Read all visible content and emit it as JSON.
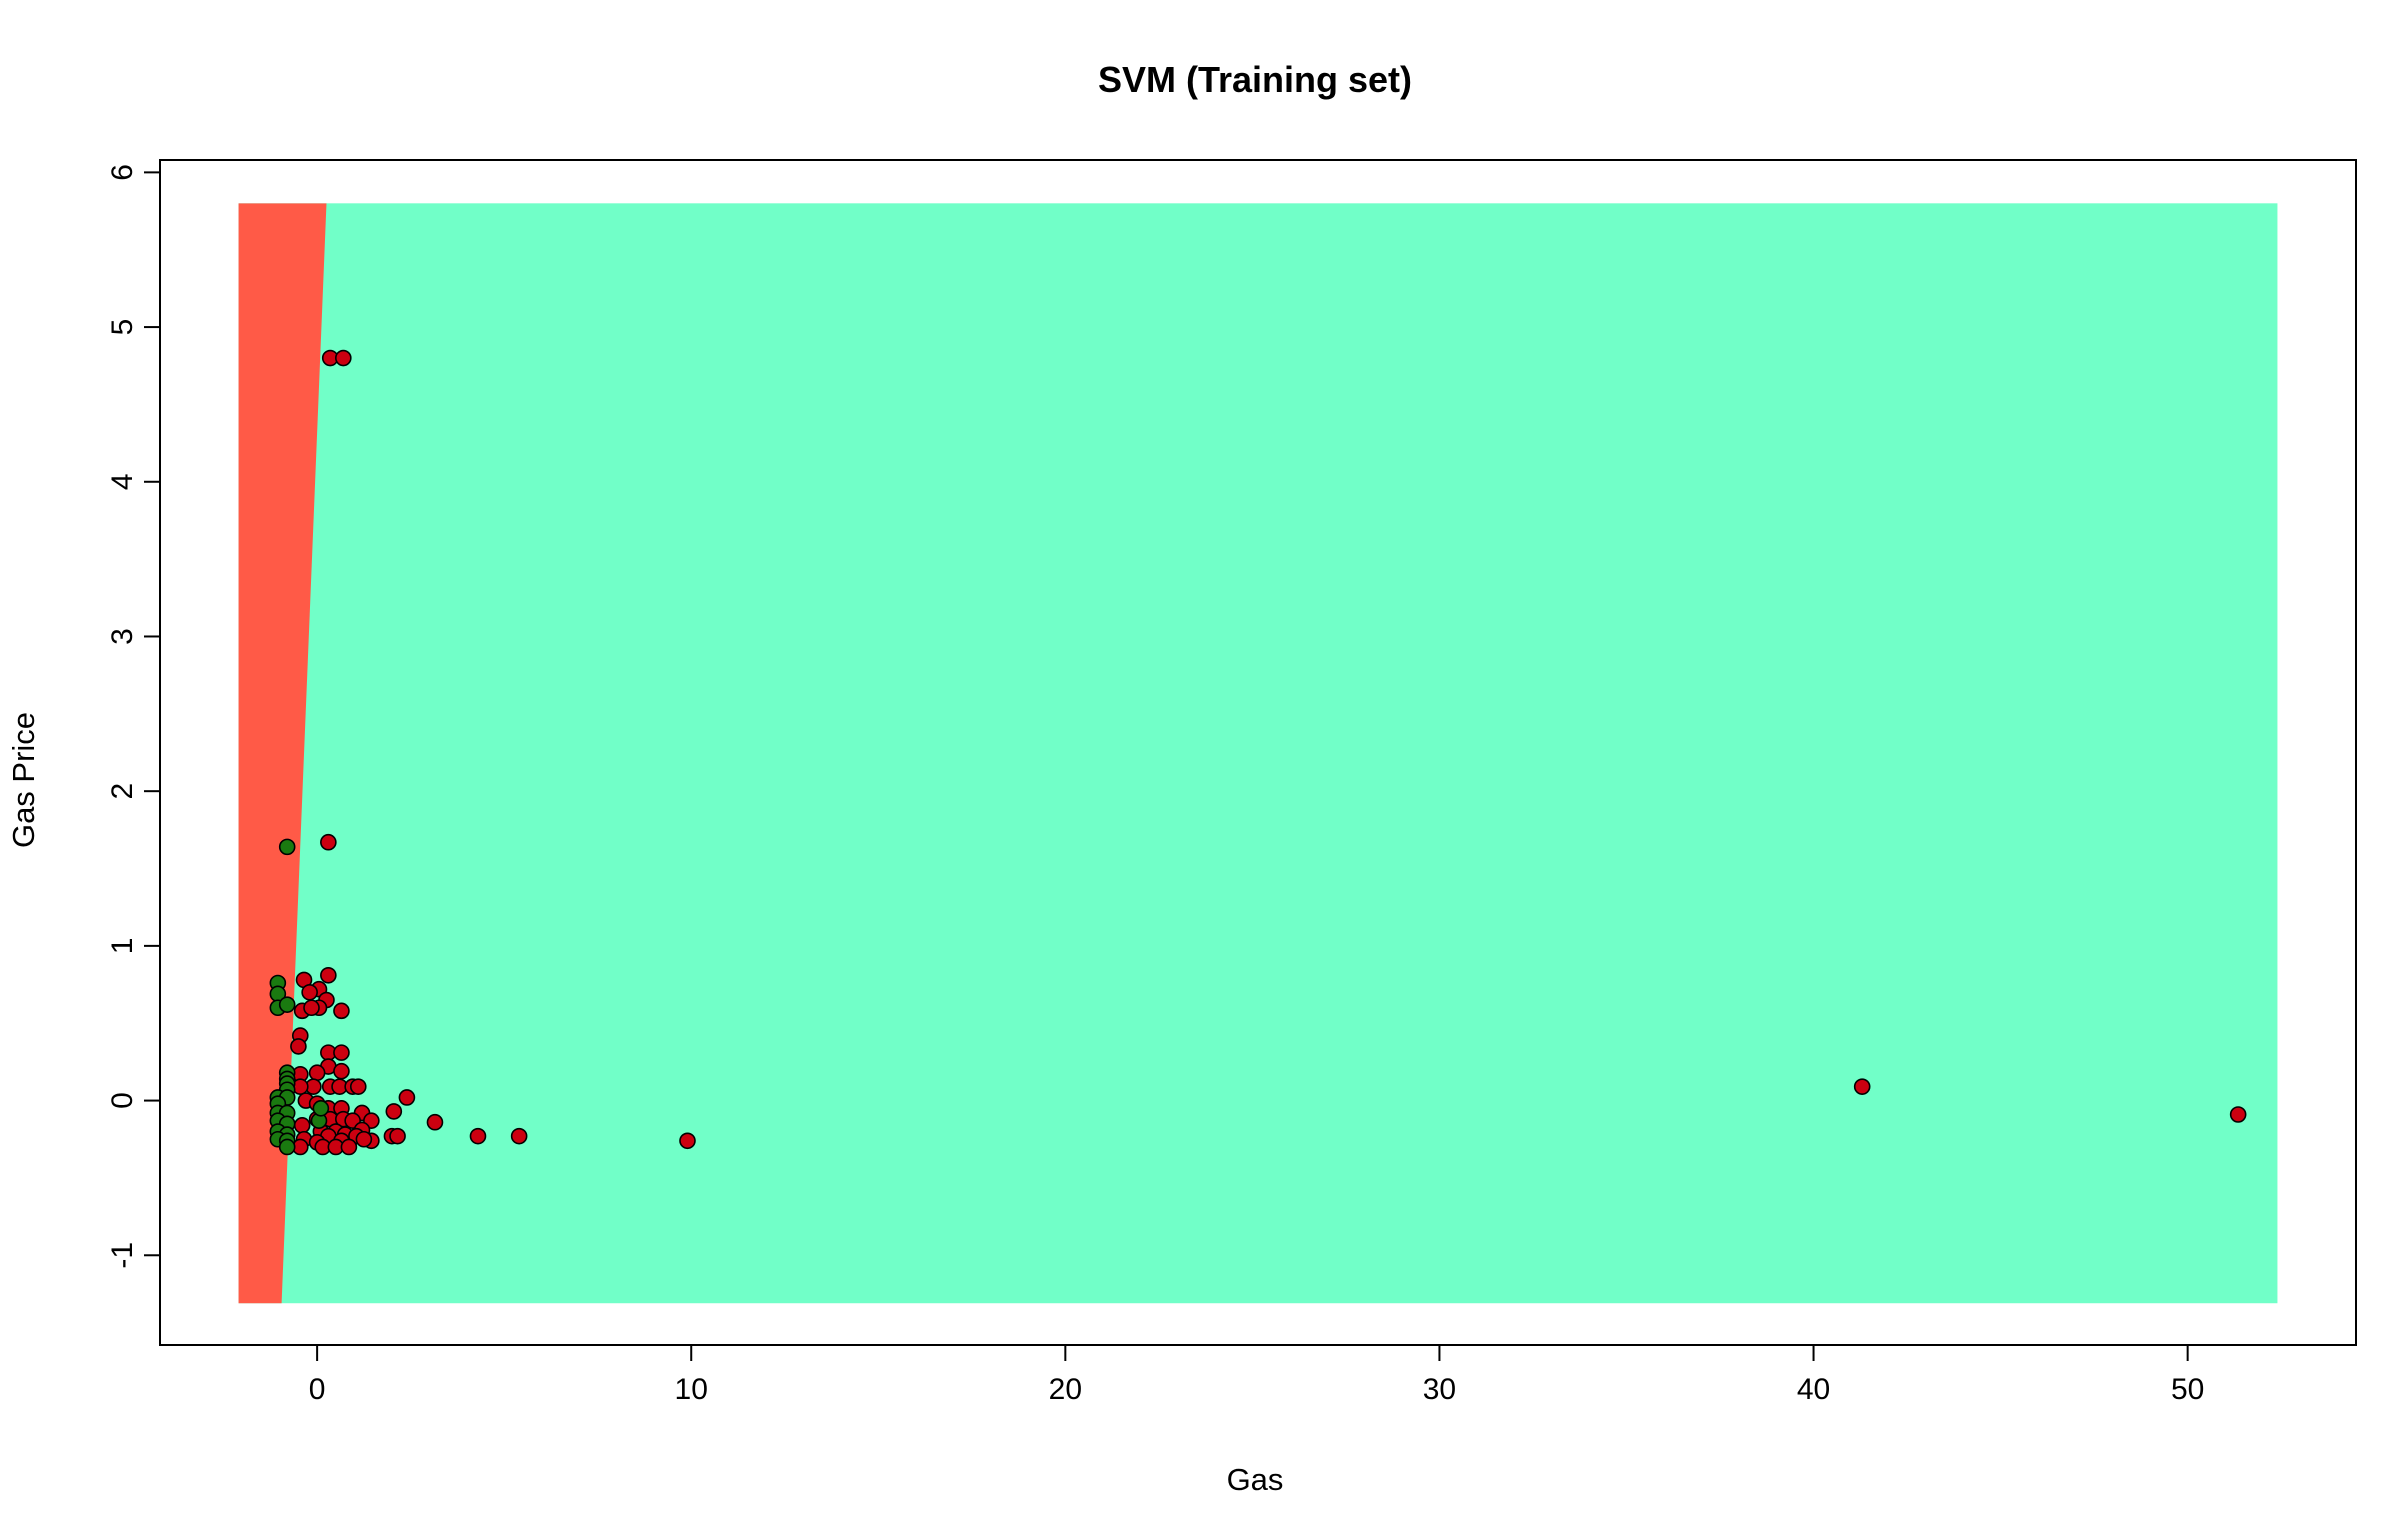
{
  "chart_data": {
    "type": "scatter",
    "title": "SVM (Training set)",
    "xlabel": "Gas",
    "ylabel": "Gas Price",
    "xlim": [
      -4.2,
      54.5
    ],
    "ylim": [
      -1.58,
      6.08
    ],
    "x_ticks": [
      0,
      10,
      20,
      30,
      40,
      50
    ],
    "y_ticks": [
      -1,
      0,
      1,
      2,
      3,
      4,
      5,
      6
    ],
    "grid": false,
    "legend": "none",
    "decision_region": {
      "x_range": [
        -2.1,
        52.4
      ],
      "y_range": [
        -1.31,
        5.8
      ],
      "boundary": [
        [
          -0.95,
          -1.31
        ],
        [
          0.25,
          5.8
        ]
      ],
      "left_class_color": "#FF5A47",
      "right_class_color": "#71FFC8"
    },
    "series": [
      {
        "color": "#CC0010",
        "points": [
          [
            0.35,
            4.8
          ],
          [
            0.7,
            4.8
          ],
          [
            0.3,
            1.67
          ],
          [
            0.3,
            0.81
          ],
          [
            -0.35,
            0.78
          ],
          [
            0.05,
            0.72
          ],
          [
            -0.2,
            0.7
          ],
          [
            0.25,
            0.65
          ],
          [
            -0.4,
            0.58
          ],
          [
            0.05,
            0.6
          ],
          [
            0.65,
            0.58
          ],
          [
            -0.15,
            0.6
          ],
          [
            -0.45,
            0.42
          ],
          [
            -0.5,
            0.35
          ],
          [
            0.3,
            0.31
          ],
          [
            0.65,
            0.31
          ],
          [
            0.3,
            0.22
          ],
          [
            0.65,
            0.19
          ],
          [
            -0.45,
            0.17
          ],
          [
            0.0,
            0.18
          ],
          [
            0.35,
            0.09
          ],
          [
            0.6,
            0.09
          ],
          [
            0.95,
            0.09
          ],
          [
            1.1,
            0.09
          ],
          [
            -0.1,
            0.09
          ],
          [
            -0.45,
            0.09
          ],
          [
            2.4,
            0.02
          ],
          [
            -0.3,
            0.0
          ],
          [
            0.0,
            -0.02
          ],
          [
            0.3,
            -0.05
          ],
          [
            0.65,
            -0.05
          ],
          [
            1.2,
            -0.08
          ],
          [
            2.05,
            -0.07
          ],
          [
            0.0,
            -0.12
          ],
          [
            0.35,
            -0.12
          ],
          [
            0.7,
            -0.12
          ],
          [
            0.95,
            -0.13
          ],
          [
            1.45,
            -0.13
          ],
          [
            3.15,
            -0.14
          ],
          [
            -0.4,
            -0.16
          ],
          [
            0.1,
            -0.2
          ],
          [
            0.5,
            -0.2
          ],
          [
            1.2,
            -0.19
          ],
          [
            0.3,
            -0.23
          ],
          [
            0.75,
            -0.22
          ],
          [
            1.05,
            -0.23
          ],
          [
            2.0,
            -0.23
          ],
          [
            2.15,
            -0.23
          ],
          [
            4.3,
            -0.23
          ],
          [
            5.4,
            -0.23
          ],
          [
            -0.35,
            -0.25
          ],
          [
            0.0,
            -0.27
          ],
          [
            0.65,
            -0.26
          ],
          [
            1.45,
            -0.26
          ],
          [
            1.25,
            -0.25
          ],
          [
            0.15,
            -0.3
          ],
          [
            0.5,
            -0.3
          ],
          [
            0.85,
            -0.3
          ],
          [
            -0.45,
            -0.3
          ],
          [
            9.9,
            -0.26
          ],
          [
            41.3,
            0.09
          ],
          [
            51.35,
            -0.09
          ]
        ]
      },
      {
        "color": "#1A7A10",
        "points": [
          [
            -0.8,
            1.64
          ],
          [
            -1.05,
            0.76
          ],
          [
            -1.05,
            0.69
          ],
          [
            -1.05,
            0.6
          ],
          [
            -0.8,
            0.62
          ],
          [
            -0.8,
            0.18
          ],
          [
            -0.8,
            0.14
          ],
          [
            -0.8,
            0.11
          ],
          [
            -0.8,
            0.07
          ],
          [
            -1.05,
            0.02
          ],
          [
            -0.8,
            0.02
          ],
          [
            -1.05,
            -0.02
          ],
          [
            -1.05,
            -0.08
          ],
          [
            -0.8,
            -0.08
          ],
          [
            -1.05,
            -0.13
          ],
          [
            -0.8,
            -0.15
          ],
          [
            -1.05,
            -0.2
          ],
          [
            -0.8,
            -0.22
          ],
          [
            -1.05,
            -0.25
          ],
          [
            -0.8,
            -0.26
          ],
          [
            -0.8,
            -0.3
          ],
          [
            0.05,
            -0.13
          ],
          [
            0.1,
            -0.05
          ]
        ]
      }
    ]
  }
}
